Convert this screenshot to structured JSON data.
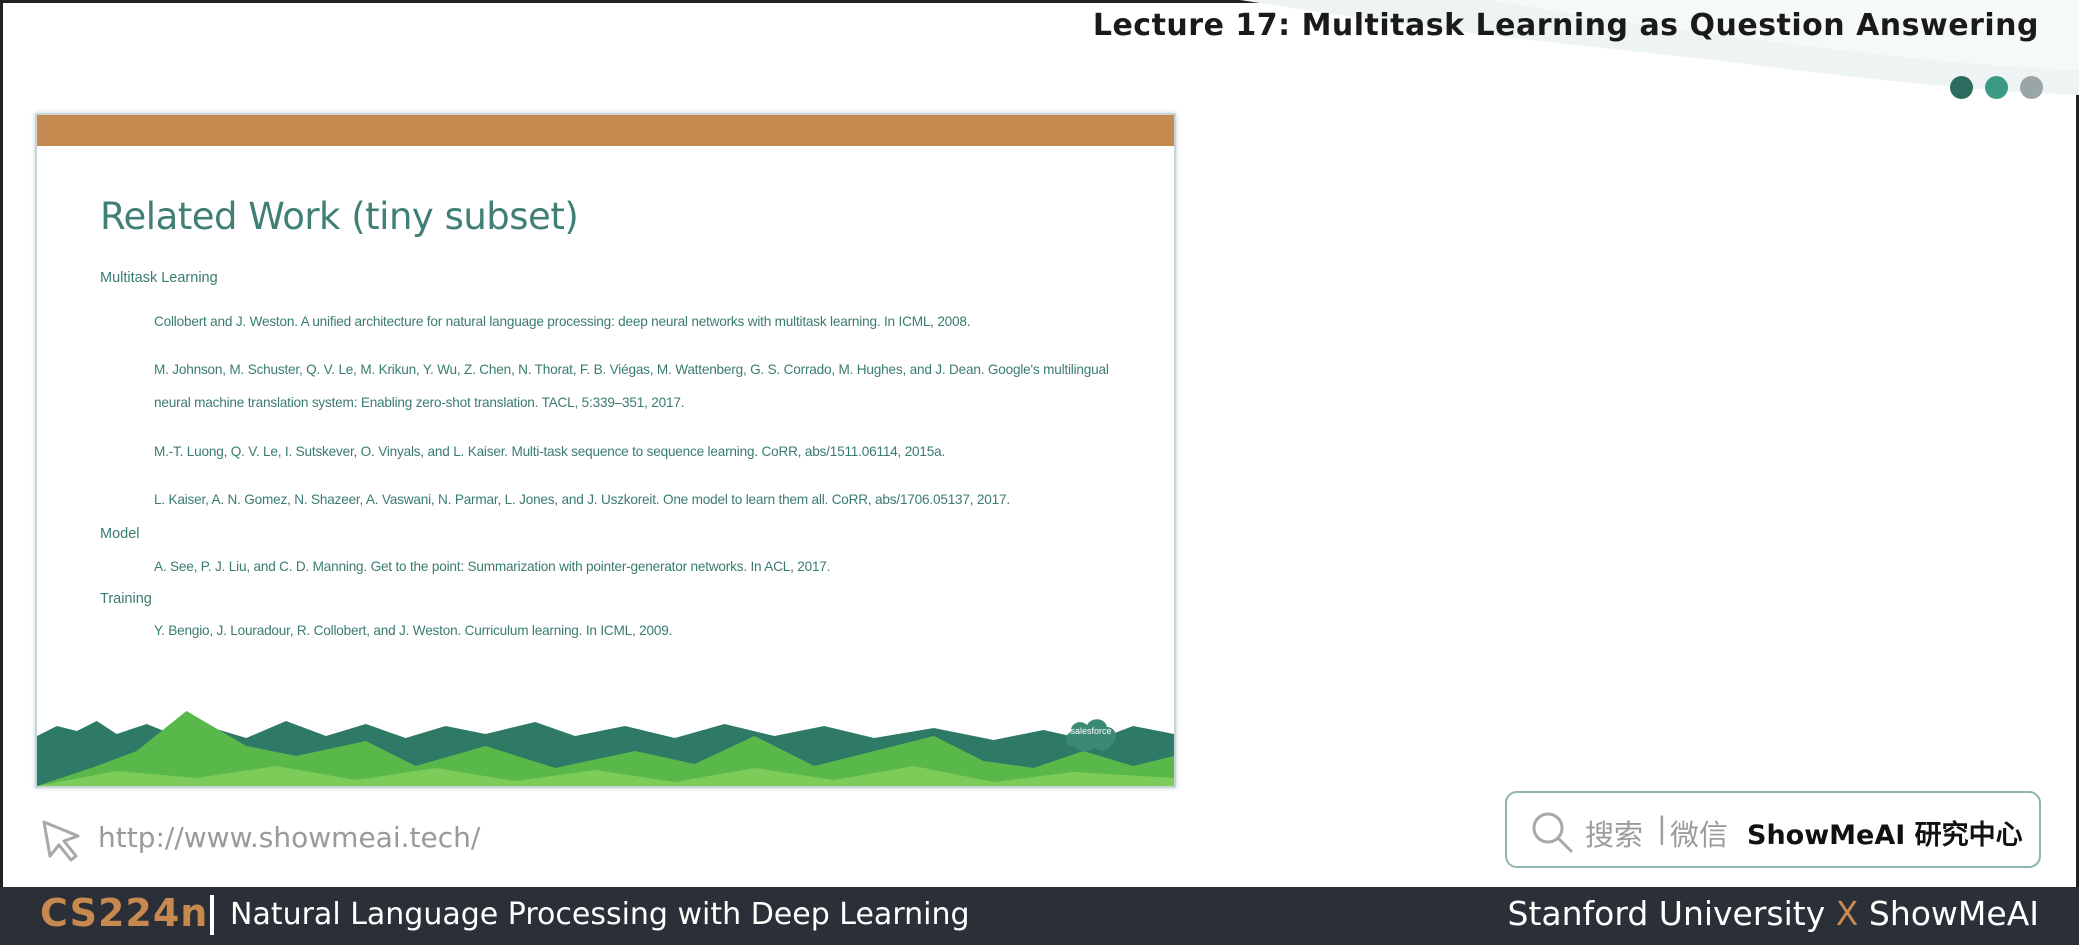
{
  "header": {
    "lecture_title": "Lecture 17: Multitask Learning as Question Answering",
    "dot_colors": [
      "#2d6b5e",
      "#3a9a84",
      "#9aa6a6"
    ]
  },
  "slide": {
    "title": "Related Work (tiny subset)",
    "accent_color": "#c58a4f",
    "text_color": "#3a7b71",
    "sections": {
      "multitask": {
        "label": "Multitask Learning",
        "refs": [
          "Collobert and J. Weston. A unified architecture for natural language processing: deep neural networks with multitask learning. In ICML, 2008.",
          "M. Johnson, M. Schuster, Q. V. Le, M. Krikun, Y. Wu, Z. Chen, N. Thorat, F. B. Viégas, M. Wattenberg, G. S. Corrado, M. Hughes, and J. Dean. Google's multilingual",
          "neural machine translation system: Enabling zero-shot translation. TACL, 5:339–351, 2017.",
          "M.-T. Luong, Q. V. Le, I. Sutskever, O. Vinyals, and L. Kaiser. Multi-task sequence to sequence learning. CoRR, abs/1511.06114, 2015a.",
          "L. Kaiser, A. N. Gomez, N. Shazeer, A. Vaswani, N. Parmar, L. Jones, and J. Uszkoreit. One model to learn them all. CoRR, abs/1706.05137, 2017."
        ]
      },
      "model": {
        "label": "Model",
        "refs": [
          "A. See, P. J. Liu, and C. D. Manning. Get to the point: Summarization with pointer-generator networks. In ACL, 2017."
        ]
      },
      "training": {
        "label": "Training",
        "refs": [
          "Y. Bengio, J. Louradour, R. Collobert, and J. Weston. Curriculum learning. In ICML, 2009."
        ]
      }
    },
    "logo_text": "salesforce"
  },
  "links": {
    "url": "http://www.showmeai.tech/"
  },
  "search": {
    "hint": "搜索",
    "separator": "|",
    "hint2": "微信",
    "brand": "ShowMeAI 研究中心"
  },
  "footer": {
    "course_code": "CS224n",
    "course_name": "Natural Language Processing with Deep Learning",
    "credit_left": "Stanford University",
    "credit_x": "X",
    "credit_right": "ShowMeAI"
  }
}
